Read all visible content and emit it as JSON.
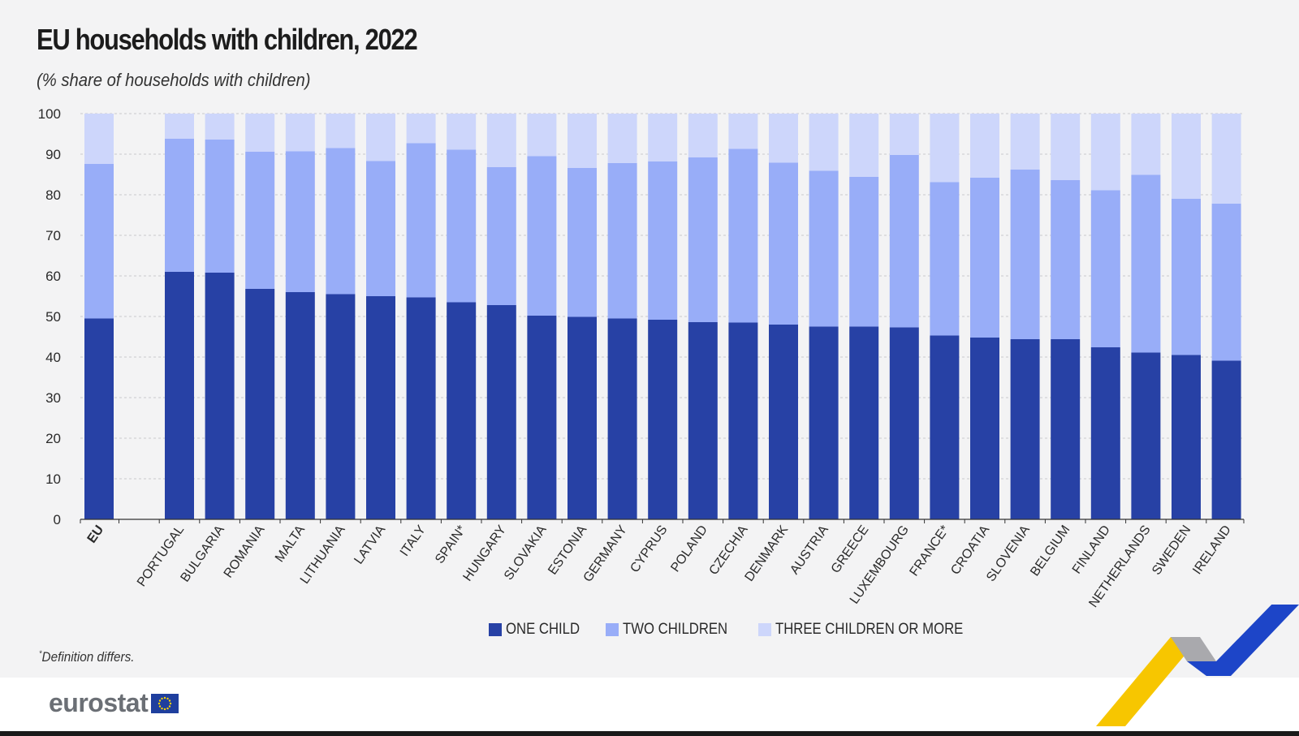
{
  "header": {
    "title": "EU households with children, 2022",
    "subtitle": "(%  share of households with children)"
  },
  "legend": [
    {
      "label": "ONE CHILD",
      "color": "#2741a5"
    },
    {
      "label": "TWO CHILDREN",
      "color": "#98adf8"
    },
    {
      "label": "THREE CHILDREN OR MORE",
      "color": "#cdd6fb"
    }
  ],
  "footnote": {
    "mark": "*",
    "text": "Definition differs."
  },
  "logo": {
    "text": "eurostat",
    "icon": "eu-flag-icon"
  },
  "chart_data": {
    "type": "bar",
    "stacked": true,
    "categories": [
      "EU",
      "PORTUGAL",
      "BULGARIA",
      "ROMANIA",
      "MALTA",
      "LITHUANIA",
      "LATVIA",
      "ITALY",
      "SPAIN*",
      "HUNGARY",
      "SLOVAKIA",
      "ESTONIA",
      "GERMANY",
      "CYPRUS",
      "POLAND",
      "CZECHIA",
      "DENMARK",
      "AUSTRIA",
      "GREECE",
      "LUXEMBOURG",
      "FRANCE*",
      "CROATIA",
      "SLOVENIA",
      "BELGIUM",
      "FINLAND",
      "NETHERLANDS",
      "SWEDEN",
      "IRELAND"
    ],
    "series": [
      {
        "name": "ONE CHILD",
        "color": "#2741a5",
        "values": [
          49.5,
          61.0,
          60.8,
          56.8,
          56.0,
          55.5,
          55.0,
          54.7,
          53.5,
          52.8,
          50.2,
          49.9,
          49.5,
          49.2,
          48.6,
          48.5,
          48.0,
          47.5,
          47.5,
          47.3,
          45.3,
          44.8,
          44.4,
          44.4,
          42.4,
          41.1,
          40.5,
          39.1
        ]
      },
      {
        "name": "TWO CHILDREN",
        "color": "#98adf8",
        "values": [
          38.1,
          32.8,
          32.8,
          33.8,
          34.7,
          36.0,
          33.3,
          38.0,
          37.6,
          34.0,
          39.3,
          36.7,
          38.3,
          39.0,
          40.6,
          42.8,
          39.9,
          38.4,
          36.9,
          42.5,
          37.8,
          39.4,
          41.8,
          39.2,
          38.7,
          43.8,
          38.5,
          38.7
        ]
      },
      {
        "name": "THREE CHILDREN OR MORE",
        "color": "#cdd6fb",
        "values": [
          12.4,
          6.2,
          6.4,
          9.4,
          9.3,
          8.5,
          11.7,
          7.3,
          8.9,
          13.2,
          10.5,
          13.4,
          12.2,
          11.8,
          10.8,
          8.7,
          12.1,
          14.1,
          15.6,
          10.2,
          16.9,
          15.8,
          13.8,
          16.4,
          18.9,
          15.1,
          21.0,
          22.2
        ]
      }
    ],
    "ylim": [
      0,
      100
    ],
    "yticks": [
      0,
      10,
      20,
      30,
      40,
      50,
      60,
      70,
      80,
      90,
      100
    ],
    "grid": "horizontal dashed",
    "legend_position": "bottom"
  }
}
